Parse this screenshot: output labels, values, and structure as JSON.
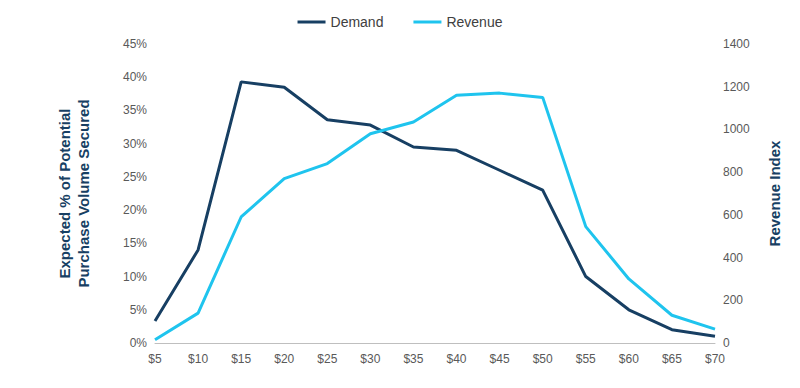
{
  "chart_data": {
    "type": "line",
    "categories": [
      "$5",
      "$10",
      "$15",
      "$20",
      "$25",
      "$30",
      "$35",
      "$40",
      "$45",
      "$50",
      "$55",
      "$60",
      "$65",
      "$70"
    ],
    "series": [
      {
        "name": "Demand",
        "color": "#173f63",
        "values": [
          3.3,
          14,
          39.3,
          38.5,
          33.6,
          32.8,
          29.5,
          29,
          26,
          23,
          10,
          5,
          2,
          1
        ]
      },
      {
        "name": "Revenue",
        "color": "#1fc4ee",
        "axis": "y2",
        "values": [
          15,
          140,
          590,
          770,
          840,
          980,
          1035,
          1160,
          1170,
          1150,
          545,
          300,
          130,
          65
        ]
      }
    ],
    "ylabel": "Expected % of Potential\nPurchase Volume Secured",
    "y2label": "Revenue Index",
    "ylim": [
      0,
      45
    ],
    "yticks": [
      {
        "value": 0,
        "label": "0%"
      },
      {
        "value": 5,
        "label": "5%"
      },
      {
        "value": 10,
        "label": "10%"
      },
      {
        "value": 15,
        "label": "15%"
      },
      {
        "value": 20,
        "label": "20%"
      },
      {
        "value": 25,
        "label": "25%"
      },
      {
        "value": 30,
        "label": "30%"
      },
      {
        "value": 35,
        "label": "35%"
      },
      {
        "value": 40,
        "label": "40%"
      },
      {
        "value": 45,
        "label": "45%"
      }
    ],
    "y2lim": [
      0,
      1400
    ],
    "y2ticks": [
      0,
      200,
      400,
      600,
      800,
      1000,
      1200,
      1400
    ],
    "grid": false,
    "legend": "top"
  }
}
